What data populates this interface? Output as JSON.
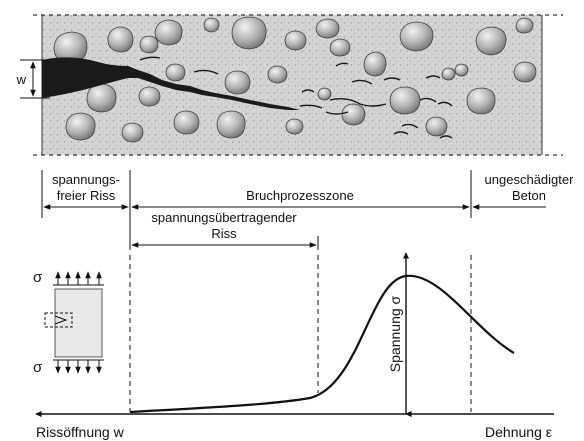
{
  "specimen": {
    "crack_width_label": "w"
  },
  "zones": {
    "stress_free_crack_line1": "spannungs-",
    "stress_free_crack_line2": "freier Riss",
    "fracture_process_zone": "Bruchprozesszone",
    "undamaged_concrete_line1": "ungeschädigter",
    "undamaged_concrete_line2": "Beton",
    "stress_transferring_crack_line1": "spannungsübertragender",
    "stress_transferring_crack_line2": "Riss"
  },
  "inset": {
    "sigma_top": "σ",
    "sigma_bottom": "σ"
  },
  "graph": {
    "y_axis_label": "Spannung σ",
    "x_left_label": "Rissöffnung w",
    "x_right_label": "Dehnung ε"
  },
  "colors": {
    "concrete": "#d4d4d4",
    "aggregate": "#a9a9a9",
    "crack": "#1a1a1a",
    "line": "#111111"
  }
}
